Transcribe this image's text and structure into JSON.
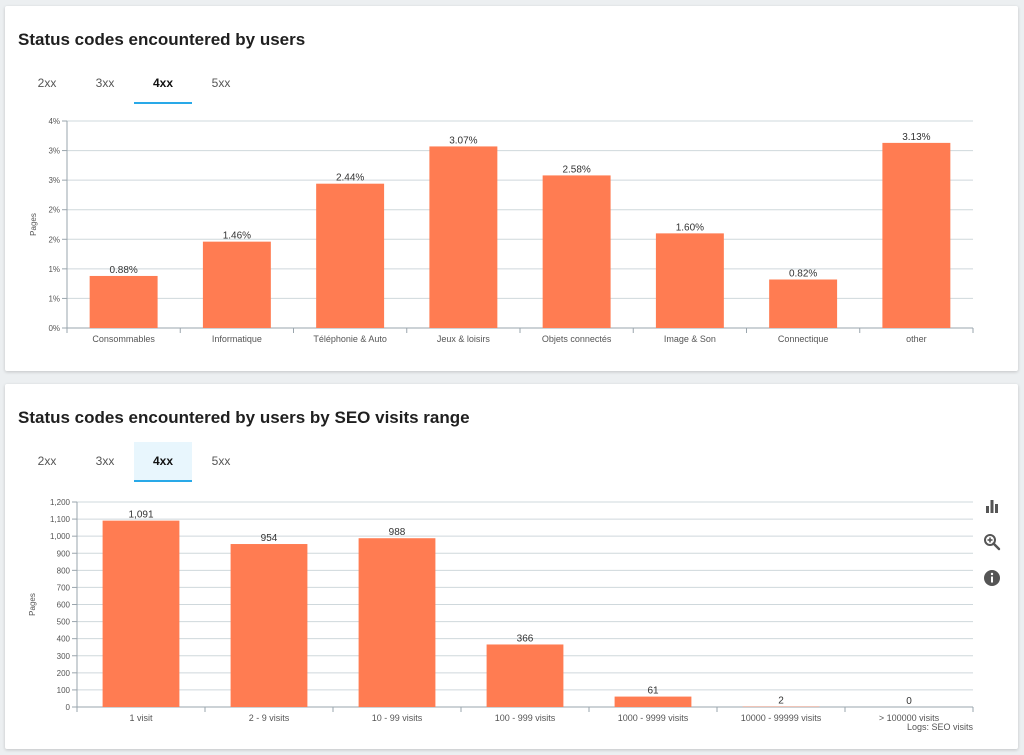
{
  "colors": {
    "bar": "#ff7c52",
    "accent": "#29a9e8",
    "grid": "#cfd8dc",
    "axis": "#9aa5ad",
    "text": "#555555"
  },
  "panels": [
    {
      "title": "Status codes encountered by users",
      "tabs": [
        {
          "label": "2xx"
        },
        {
          "label": "3xx"
        },
        {
          "label": "4xx"
        },
        {
          "label": "5xx"
        }
      ],
      "active_tab": "4xx"
    },
    {
      "title": "Status codes encountered by users by SEO visits range",
      "tabs": [
        {
          "label": "2xx"
        },
        {
          "label": "3xx"
        },
        {
          "label": "4xx"
        },
        {
          "label": "5xx"
        }
      ],
      "active_tab": "4xx",
      "icons": [
        {
          "name": "bar-chart-icon"
        },
        {
          "name": "zoom-in-icon"
        },
        {
          "name": "info-icon"
        }
      ]
    }
  ],
  "chart_data": [
    {
      "type": "bar",
      "title": "",
      "ylabel": "Pages",
      "xlabel": "",
      "ylim": [
        0,
        3.5
      ],
      "yticks": [
        0,
        0.5,
        1,
        1.5,
        2,
        2.5,
        3,
        3.5
      ],
      "ytick_labels": [
        "0%",
        "1%",
        "1%",
        "2%",
        "2%",
        "3%",
        "3%",
        "4%"
      ],
      "categories": [
        "Consommables",
        "Informatique",
        "Téléphonie & Auto",
        "Jeux & loisirs",
        "Objets connectés",
        "Image & Son",
        "Connectique",
        "other"
      ],
      "values": [
        0.88,
        1.46,
        2.44,
        3.07,
        2.58,
        1.6,
        0.82,
        3.13
      ],
      "data_labels": [
        "0.88%",
        "1.46%",
        "2.44%",
        "3.07%",
        "2.58%",
        "1.60%",
        "0.82%",
        "3.13%"
      ],
      "grid": true,
      "legend": "none"
    },
    {
      "type": "bar",
      "title": "",
      "ylabel": "Pages",
      "xlabel": "",
      "ylim": [
        0,
        1200
      ],
      "yticks": [
        0,
        100,
        200,
        300,
        400,
        500,
        600,
        700,
        800,
        900,
        1000,
        1100,
        1200
      ],
      "ytick_labels": [
        "0",
        "100",
        "200",
        "300",
        "400",
        "500",
        "600",
        "700",
        "800",
        "900",
        "1,000",
        "1,100",
        "1,200"
      ],
      "categories": [
        "1 visit",
        "2 - 9 visits",
        "10 - 99 visits",
        "100 - 999 visits",
        "1000 - 9999 visits",
        "10000 - 99999 visits",
        "> 100000 visits"
      ],
      "values": [
        1091,
        954,
        988,
        366,
        61,
        2,
        0
      ],
      "data_labels": [
        "1,091",
        "954",
        "988",
        "366",
        "61",
        "2",
        "0"
      ],
      "credit": "Logs: SEO visits",
      "grid": true,
      "legend": "none"
    }
  ]
}
